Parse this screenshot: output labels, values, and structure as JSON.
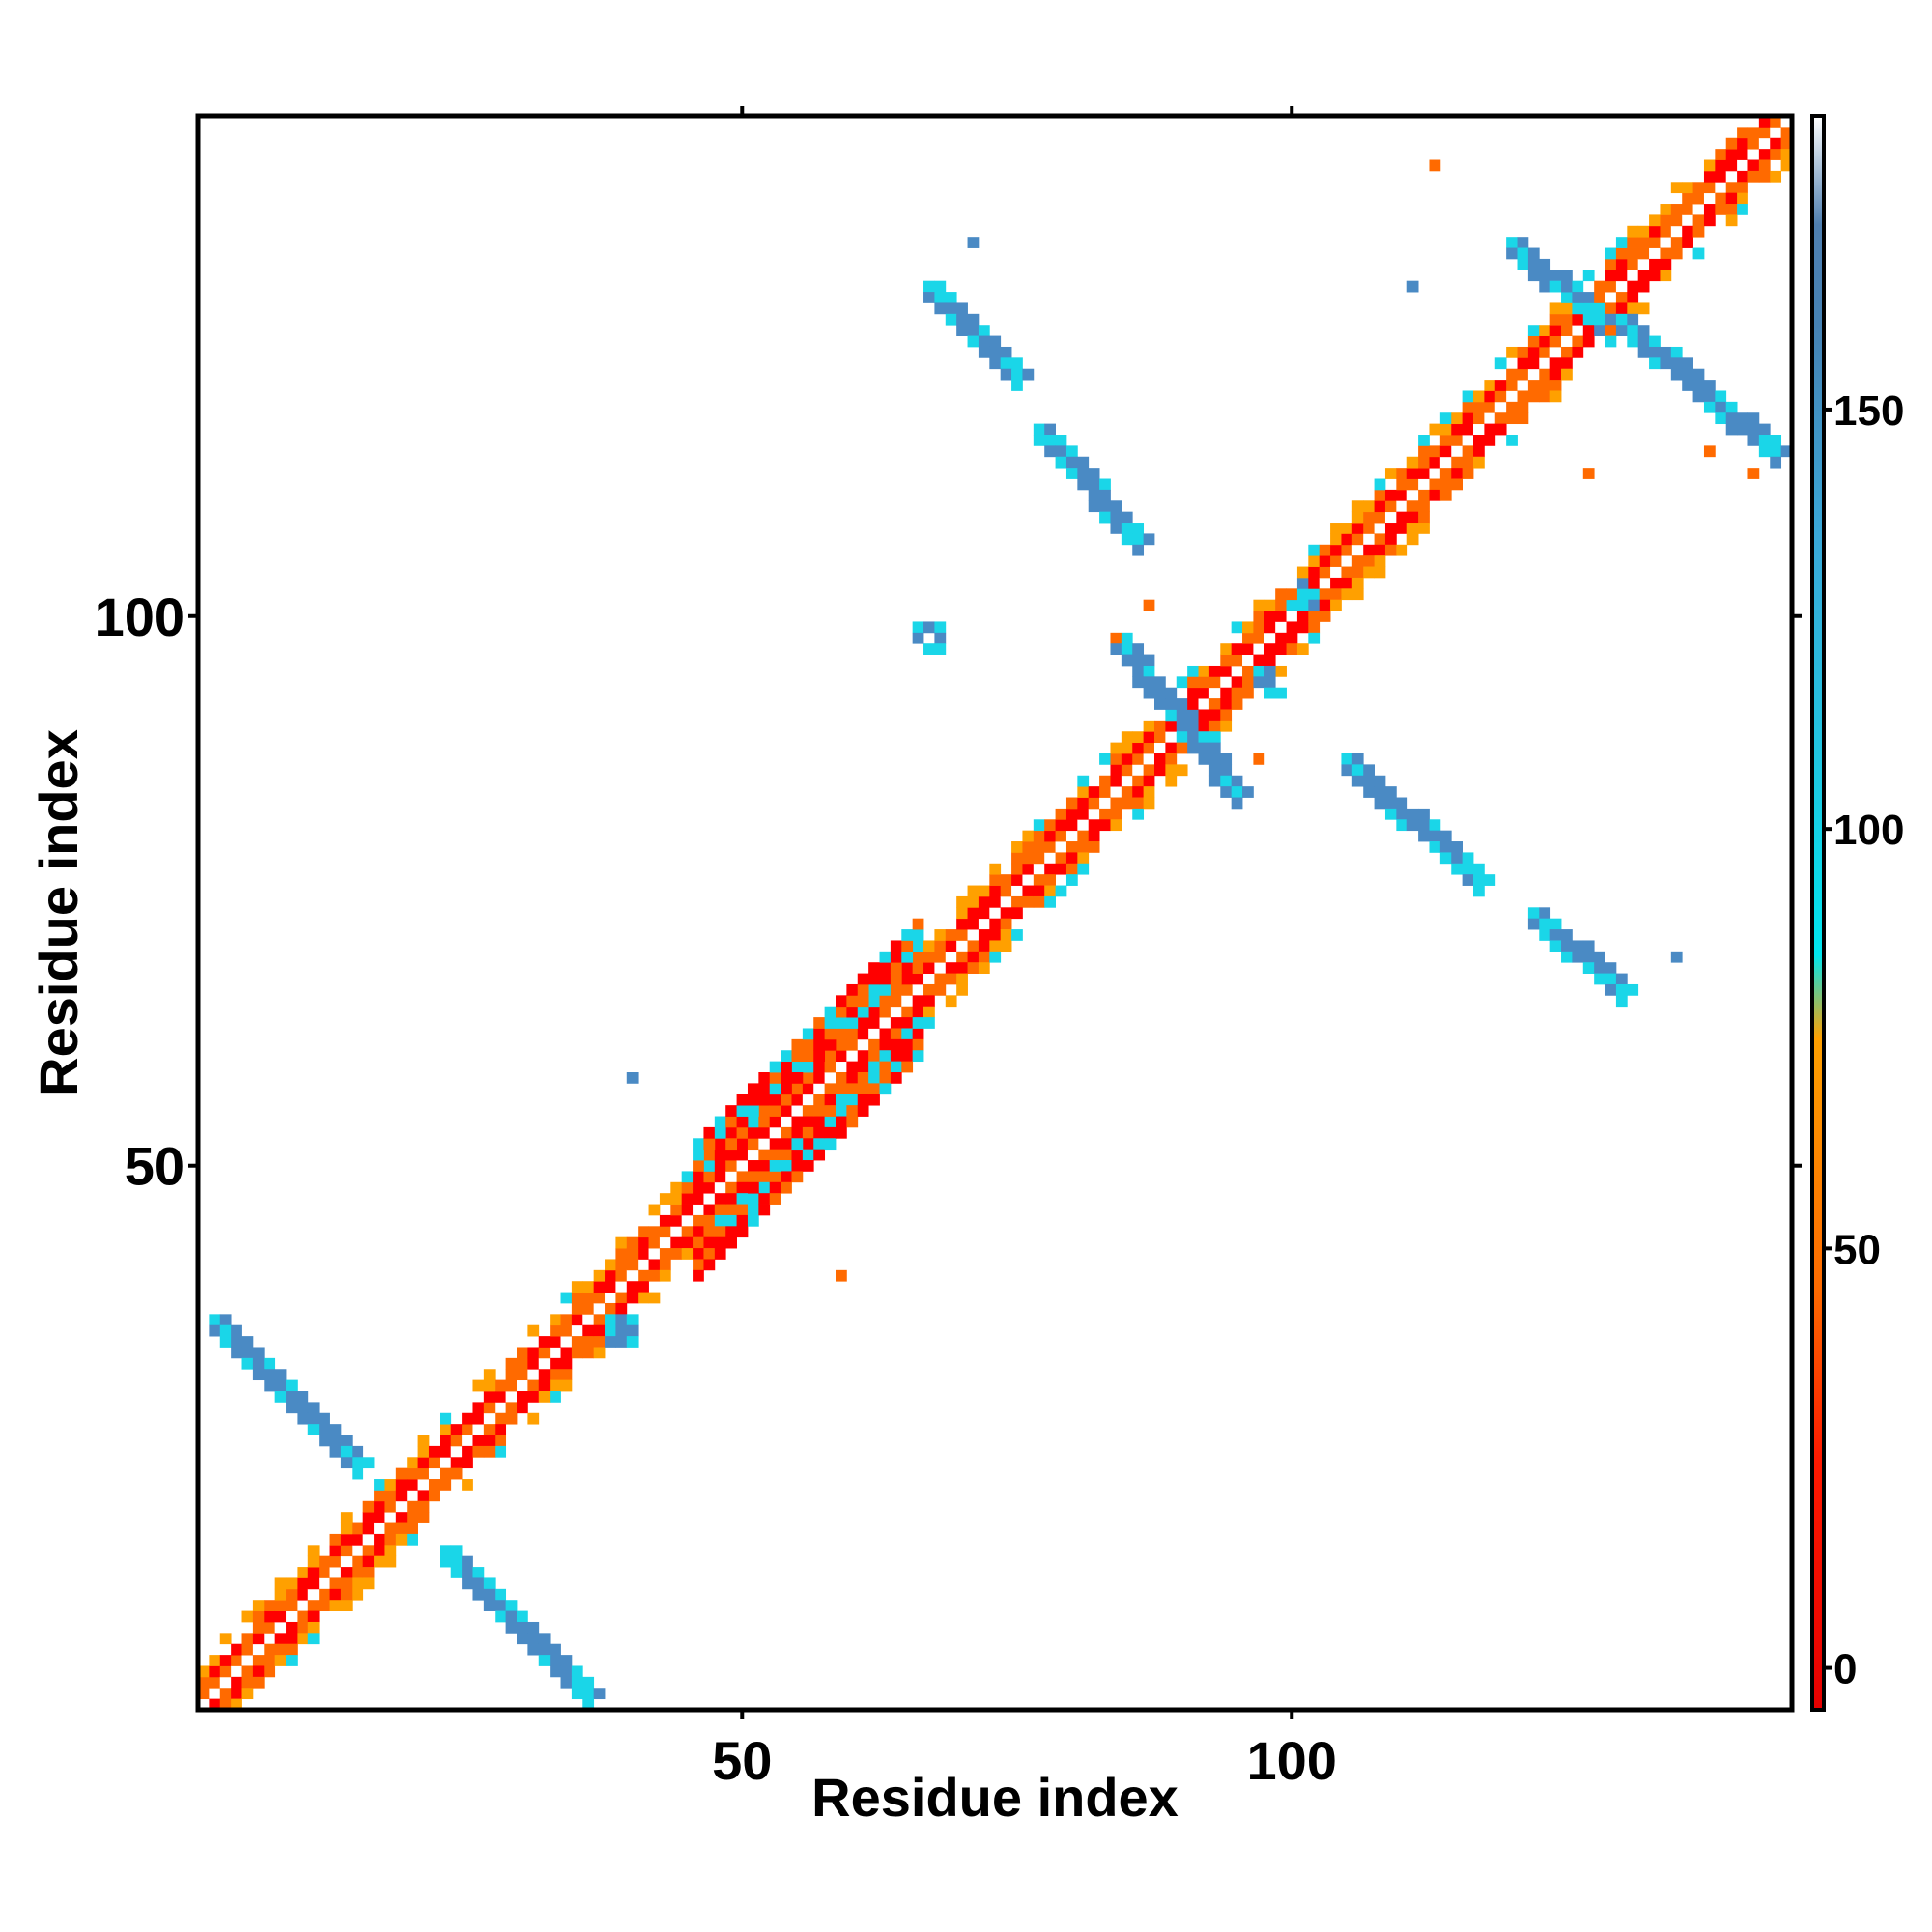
{
  "chart_data": {
    "type": "heatmap",
    "title": "",
    "xlabel": "Residue index",
    "ylabel": "Residue index",
    "xlim": [
      0.5,
      145.5
    ],
    "ylim": [
      0.5,
      145.5
    ],
    "x_ticks": [
      50,
      100
    ],
    "y_ticks": [
      50,
      100
    ],
    "grid": false,
    "legend": "colorbar-right",
    "colorbar": {
      "range": [
        -5,
        185
      ],
      "ticks": [
        0,
        50,
        100,
        150
      ],
      "stops": [
        {
          "value": -5,
          "color": "#e60000"
        },
        {
          "value": 25,
          "color": "#ff1a00"
        },
        {
          "value": 45,
          "color": "#ff6a00"
        },
        {
          "value": 75,
          "color": "#ffa000"
        },
        {
          "value": 85,
          "color": "#00e5ee"
        },
        {
          "value": 110,
          "color": "#22c4e0"
        },
        {
          "value": 135,
          "color": "#3aa8d8"
        },
        {
          "value": 160,
          "color": "#4682b4"
        },
        {
          "value": 172,
          "color": "#4f7fb0"
        },
        {
          "value": 185,
          "color": "#ffffff"
        }
      ]
    },
    "cell_colors": {
      "red": "#ff0000",
      "orange": "#ff6a00",
      "amber": "#ffa000",
      "cyan": "#1ad6e8",
      "steel": "#4a8ac4",
      "white": "#ffffff"
    },
    "features": [
      {
        "kind": "diagonal",
        "from": 1,
        "to": 145
      },
      {
        "kind": "helix_band",
        "from": 46,
        "to": 66
      },
      {
        "kind": "strand",
        "start": [
          2,
          36
        ],
        "end": [
          15,
          23
        ]
      },
      {
        "kind": "strand",
        "start": [
          23,
          15
        ],
        "end": [
          36,
          2
        ]
      },
      {
        "kind": "strand",
        "start": [
          67,
          130
        ],
        "end": [
          75,
          122
        ]
      },
      {
        "kind": "strand",
        "start": [
          77,
          117
        ],
        "end": [
          86,
          107
        ]
      },
      {
        "kind": "strand",
        "start": [
          84,
          98
        ],
        "end": [
          95,
          84
        ]
      },
      {
        "kind": "strand",
        "start": [
          105,
          87
        ],
        "end": [
          117,
          76
        ]
      },
      {
        "kind": "strand",
        "start": [
          120,
          134
        ],
        "end": [
          128,
          127
        ]
      },
      {
        "kind": "strand",
        "start": [
          130,
          127
        ],
        "end": [
          144,
          115
        ]
      },
      {
        "kind": "strand",
        "start": [
          122,
          73
        ],
        "end": [
          130,
          66
        ]
      },
      {
        "kind": "patch",
        "at": [
          100,
          103
        ],
        "size": 3
      },
      {
        "kind": "patch",
        "at": [
          38,
          36
        ],
        "size": 3
      },
      {
        "kind": "patch",
        "at": [
          97,
          95
        ],
        "size": 3
      },
      {
        "kind": "patch",
        "at": [
          66,
          99
        ],
        "size": 3
      },
      {
        "kind": "dot",
        "at": [
          40,
          58
        ]
      },
      {
        "kind": "dot",
        "at": [
          59,
          40
        ]
      },
      {
        "kind": "dot",
        "at": [
          111,
          130
        ]
      },
      {
        "kind": "dot",
        "at": [
          127,
          113
        ]
      },
      {
        "kind": "dot",
        "at": [
          71,
          134
        ]
      },
      {
        "kind": "dot",
        "at": [
          113,
          141
        ]
      },
      {
        "kind": "dot",
        "at": [
          86,
          106
        ]
      },
      {
        "kind": "dot",
        "at": [
          106,
          87
        ]
      },
      {
        "kind": "dot",
        "at": [
          138,
          115
        ]
      },
      {
        "kind": "dot",
        "at": [
          142,
          113
        ]
      },
      {
        "kind": "dot",
        "at": [
          135,
          69
        ]
      },
      {
        "kind": "dot",
        "at": [
          84,
          98
        ]
      },
      {
        "kind": "dot",
        "at": [
          97,
          87
        ]
      },
      {
        "kind": "dot",
        "at": [
          87,
          101
        ]
      }
    ]
  }
}
